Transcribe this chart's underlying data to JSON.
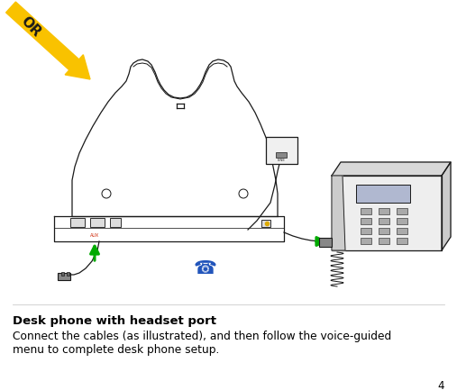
{
  "background_color": "#ffffff",
  "title_bold": "Desk phone with headset port",
  "body_text_line1": "Connect the cables (as illustrated), and then follow the voice-guided",
  "body_text_line2": "menu to complete desk phone setup.",
  "page_number": "4",
  "or_text": "OR",
  "or_arrow_color": "#F9C200",
  "or_text_color": "#1a1a1a",
  "green_arrow_color": "#00aa00",
  "blue_phone_color": "#2255bb",
  "line_color": "#1a1a1a",
  "title_fontsize": 9.5,
  "body_fontsize": 8.8,
  "page_num_fontsize": 8.5
}
